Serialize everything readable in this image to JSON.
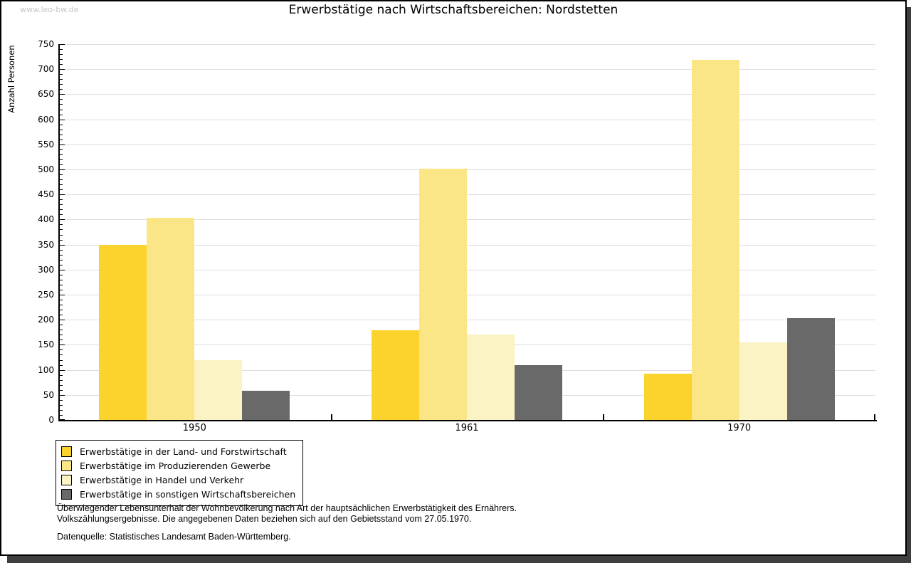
{
  "watermark": "www.leo-bw.de",
  "title": "Erwerbstätige nach Wirtschaftsbereichen: Nordstetten",
  "chart_data": {
    "type": "bar",
    "title": "Erwerbstätige nach Wirtschaftsbereichen: Nordstetten",
    "xlabel": "",
    "ylabel": "Anzahl Personen",
    "categories": [
      "1950",
      "1961",
      "1970"
    ],
    "series": [
      {
        "name": "Erwerbstätige in der Land- und Forstwirtschaft",
        "color": "#FCD32D",
        "values": [
          350,
          179,
          93
        ]
      },
      {
        "name": "Erwerbstätige im Produzierenden Gewerbe",
        "color": "#FBE687",
        "values": [
          403,
          502,
          719
        ]
      },
      {
        "name": "Erwerbstätige in Handel und Verkehr",
        "color": "#FCF3C5",
        "values": [
          120,
          170,
          155
        ]
      },
      {
        "name": "Erwerbstätige in sonstigen Wirtschaftsbereichen",
        "color": "#696969",
        "values": [
          58,
          109,
          203
        ]
      }
    ],
    "ylim": [
      0,
      750
    ],
    "ytick_step": 50,
    "minor_tick_step": 10,
    "grid": "horizontal",
    "gridline_color": "#dddddd",
    "legend_position": "bottom-left"
  },
  "footer": {
    "line1": "Überwiegender Lebensunterhalt der Wohnbevölkerung nach Art der hauptsächlichen Erwerbstätigkeit des Ernährers.",
    "line2": "Volkszählungsergebnisse. Die angegebenen Daten beziehen sich auf den Gebietsstand vom 27.05.1970.",
    "source": "Datenquelle: Statistisches Landesamt Baden-Württemberg."
  }
}
